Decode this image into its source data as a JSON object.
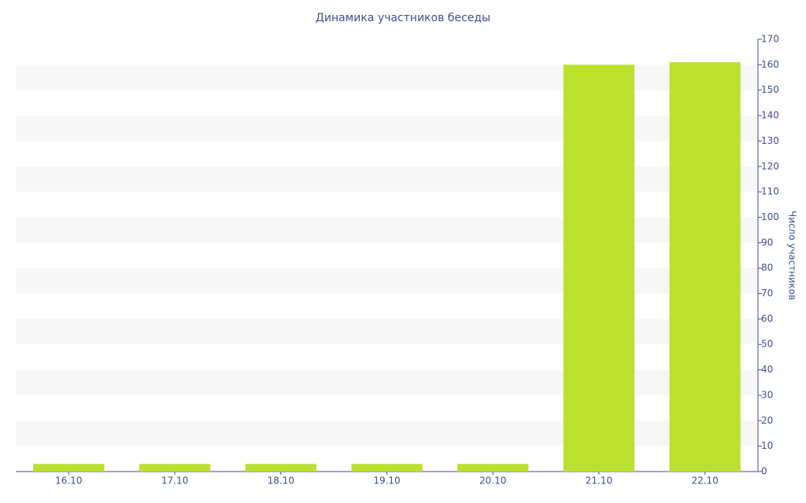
{
  "chart_data": {
    "type": "bar",
    "title": "Динамика участников беседы",
    "y_label": "Число участников",
    "categories": [
      "16.10",
      "17.10",
      "18.10",
      "19.10",
      "20.10",
      "21.10",
      "22.10"
    ],
    "values": [
      3,
      3,
      3,
      3,
      3,
      160,
      161
    ],
    "color": "#bbe02e",
    "ylim": [
      0,
      170
    ],
    "yticks": [
      0,
      10,
      20,
      30,
      40,
      50,
      60,
      70,
      80,
      90,
      100,
      110,
      120,
      130,
      140,
      150,
      160,
      170
    ],
    "grid": "bands",
    "y_axis_side": "right"
  }
}
